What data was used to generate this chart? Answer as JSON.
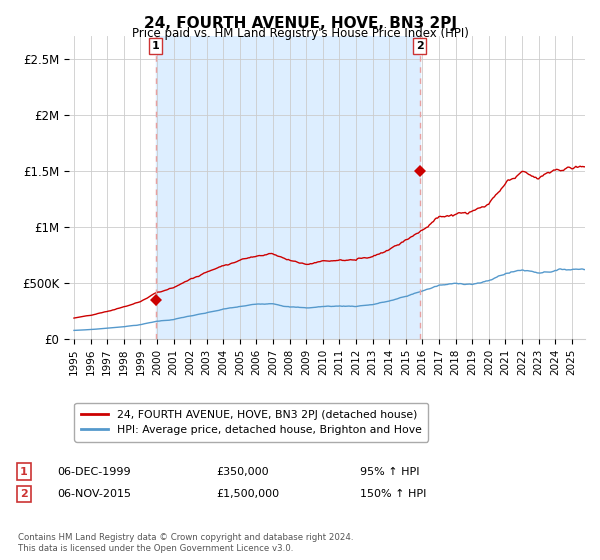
{
  "title": "24, FOURTH AVENUE, HOVE, BN3 2PJ",
  "subtitle": "Price paid vs. HM Land Registry's House Price Index (HPI)",
  "legend_line1": "24, FOURTH AVENUE, HOVE, BN3 2PJ (detached house)",
  "legend_line2": "HPI: Average price, detached house, Brighton and Hove",
  "annotation1_label": "1",
  "annotation1_date": "06-DEC-1999",
  "annotation1_price": "£350,000",
  "annotation1_hpi": "95% ↑ HPI",
  "annotation2_label": "2",
  "annotation2_date": "06-NOV-2015",
  "annotation2_price": "£1,500,000",
  "annotation2_hpi": "150% ↑ HPI",
  "footer": "Contains HM Land Registry data © Crown copyright and database right 2024.\nThis data is licensed under the Open Government Licence v3.0.",
  "red_color": "#cc0000",
  "blue_color": "#5599cc",
  "dashed_color": "#e8a0a0",
  "shade_color": "#ddeeff",
  "background_color": "#ffffff",
  "grid_color": "#cccccc",
  "ylim": [
    0,
    2700000
  ],
  "yticks": [
    0,
    500000,
    1000000,
    1500000,
    2000000,
    2500000
  ],
  "ytick_labels": [
    "£0",
    "£500K",
    "£1M",
    "£1.5M",
    "£2M",
    "£2.5M"
  ],
  "marker1_x_year": 1999.92,
  "marker1_y": 350000,
  "marker2_x_year": 2015.84,
  "marker2_y": 1500000,
  "vline1_x": 1999.92,
  "vline2_x": 2015.84,
  "xlim_left": 1994.7,
  "xlim_right": 2025.8
}
